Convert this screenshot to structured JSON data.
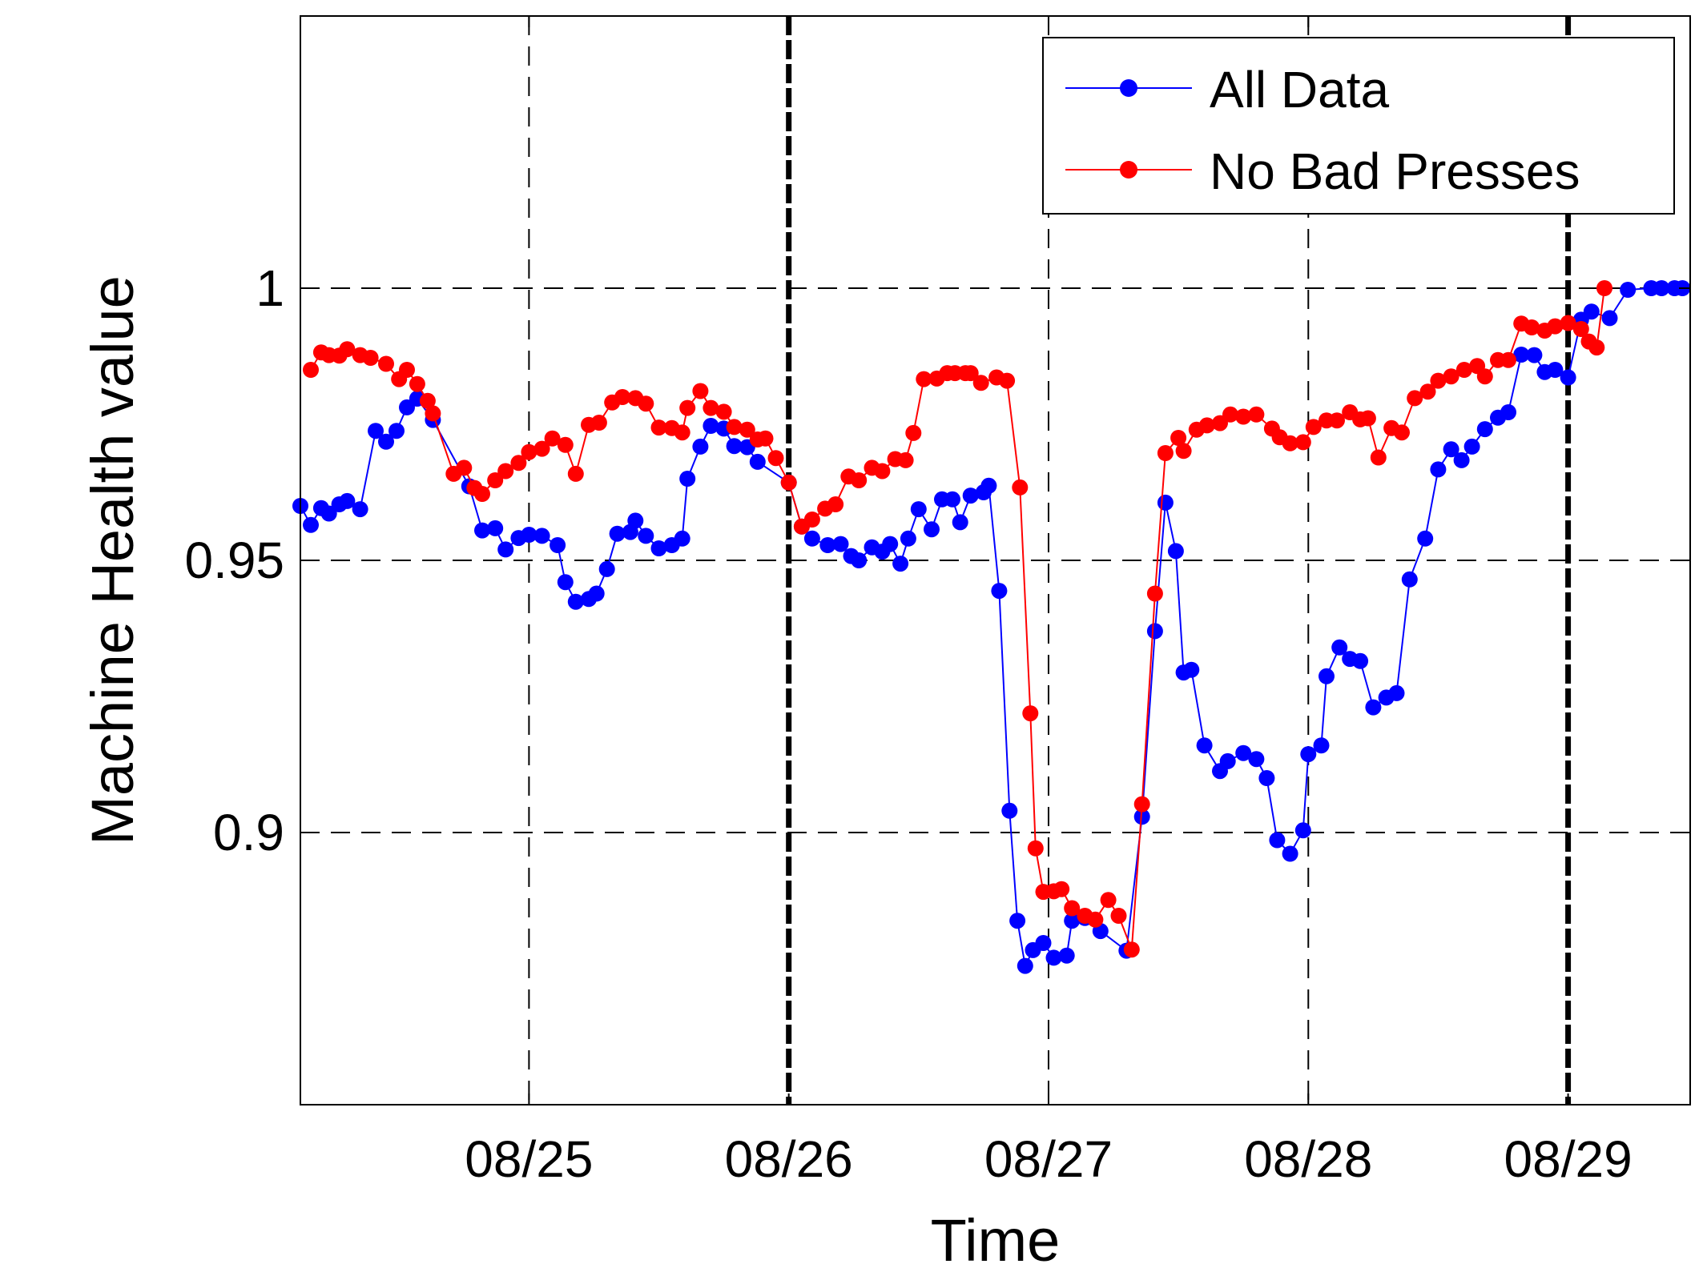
{
  "chart_data": {
    "type": "line",
    "title": "",
    "xlabel": "Time",
    "ylabel": "Machine Health value",
    "x_unit": "days (0 = 08/25)",
    "xlim": [
      -0.88,
      4.47
    ],
    "ylim": [
      0.85,
      1.05
    ],
    "x_ticks": [
      {
        "x": 0,
        "label": "08/25"
      },
      {
        "x": 1,
        "label": "08/26"
      },
      {
        "x": 2,
        "label": "08/27"
      },
      {
        "x": 3,
        "label": "08/28"
      },
      {
        "x": 4,
        "label": "08/29"
      }
    ],
    "y_ticks": [
      {
        "y": 0.9,
        "label": "0.9"
      },
      {
        "y": 0.95,
        "label": "0.95"
      },
      {
        "y": 1.0,
        "label": "1"
      }
    ],
    "grid": true,
    "vertical_markers": [
      1,
      4
    ],
    "legend": {
      "position": "top-right"
    },
    "series": [
      {
        "name": "All Data",
        "color": "#0000ff",
        "points": [
          [
            -0.88,
            0.96
          ],
          [
            -0.84,
            0.9565
          ],
          [
            -0.8,
            0.9596
          ],
          [
            -0.77,
            0.9586
          ],
          [
            -0.73,
            0.9603
          ],
          [
            -0.7,
            0.9609
          ],
          [
            -0.65,
            0.9594
          ],
          [
            -0.59,
            0.9738
          ],
          [
            -0.55,
            0.9718
          ],
          [
            -0.51,
            0.9738
          ],
          [
            -0.47,
            0.9781
          ],
          [
            -0.43,
            0.9797
          ],
          [
            -0.37,
            0.9758
          ],
          [
            -0.23,
            0.9636
          ],
          [
            -0.18,
            0.9555
          ],
          [
            -0.13,
            0.9559
          ],
          [
            -0.09,
            0.952
          ],
          [
            -0.04,
            0.9541
          ],
          [
            0.0,
            0.9547
          ],
          [
            0.05,
            0.9545
          ],
          [
            0.11,
            0.9528
          ],
          [
            0.14,
            0.946
          ],
          [
            0.18,
            0.9424
          ],
          [
            0.23,
            0.9429
          ],
          [
            0.26,
            0.9439
          ],
          [
            0.3,
            0.9484
          ],
          [
            0.34,
            0.9549
          ],
          [
            0.39,
            0.9552
          ],
          [
            0.41,
            0.9573
          ],
          [
            0.45,
            0.9545
          ],
          [
            0.5,
            0.9522
          ],
          [
            0.55,
            0.9528
          ],
          [
            0.59,
            0.954
          ],
          [
            0.61,
            0.965
          ],
          [
            0.66,
            0.9709
          ],
          [
            0.7,
            0.9747
          ],
          [
            0.75,
            0.9742
          ],
          [
            0.79,
            0.971
          ],
          [
            0.84,
            0.9708
          ],
          [
            0.88,
            0.9681
          ],
          [
            1.0,
            0.9643
          ],
          [
            1.05,
            0.9562
          ],
          [
            1.09,
            0.954
          ],
          [
            1.15,
            0.9528
          ],
          [
            1.2,
            0.953
          ],
          [
            1.24,
            0.9508
          ],
          [
            1.27,
            0.95
          ],
          [
            1.32,
            0.9524
          ],
          [
            1.36,
            0.9516
          ],
          [
            1.39,
            0.953
          ],
          [
            1.43,
            0.9494
          ],
          [
            1.46,
            0.954
          ],
          [
            1.5,
            0.9594
          ],
          [
            1.55,
            0.9557
          ],
          [
            1.59,
            0.9612
          ],
          [
            1.63,
            0.9612
          ],
          [
            1.66,
            0.957
          ],
          [
            1.7,
            0.9619
          ],
          [
            1.75,
            0.9625
          ],
          [
            1.77,
            0.9637
          ],
          [
            1.81,
            0.9444
          ],
          [
            1.85,
            0.904
          ],
          [
            1.88,
            0.8838
          ],
          [
            1.91,
            0.8755
          ],
          [
            1.94,
            0.8784
          ],
          [
            1.98,
            0.8797
          ],
          [
            2.02,
            0.877
          ],
          [
            2.07,
            0.8774
          ],
          [
            2.09,
            0.8838
          ],
          [
            2.14,
            0.8843
          ],
          [
            2.2,
            0.8819
          ],
          [
            2.3,
            0.8783
          ],
          [
            2.36,
            0.9029
          ],
          [
            2.41,
            0.937
          ],
          [
            2.45,
            0.9606
          ],
          [
            2.49,
            0.9517
          ],
          [
            2.52,
            0.9294
          ],
          [
            2.55,
            0.9299
          ],
          [
            2.6,
            0.916
          ],
          [
            2.66,
            0.9113
          ],
          [
            2.69,
            0.9131
          ],
          [
            2.75,
            0.9146
          ],
          [
            2.8,
            0.9135
          ],
          [
            2.84,
            0.91
          ],
          [
            2.88,
            0.8986
          ],
          [
            2.93,
            0.8961
          ],
          [
            2.98,
            0.9004
          ],
          [
            3.0,
            0.9144
          ],
          [
            3.05,
            0.916
          ],
          [
            3.07,
            0.9287
          ],
          [
            3.12,
            0.934
          ],
          [
            3.16,
            0.9319
          ],
          [
            3.2,
            0.9315
          ],
          [
            3.25,
            0.923
          ],
          [
            3.3,
            0.9248
          ],
          [
            3.34,
            0.9256
          ],
          [
            3.39,
            0.9465
          ],
          [
            3.45,
            0.954
          ],
          [
            3.5,
            0.9667
          ],
          [
            3.55,
            0.9704
          ],
          [
            3.59,
            0.9684
          ],
          [
            3.63,
            0.9709
          ],
          [
            3.68,
            0.9741
          ],
          [
            3.73,
            0.9762
          ],
          [
            3.77,
            0.9772
          ],
          [
            3.82,
            0.9878
          ],
          [
            3.87,
            0.9877
          ],
          [
            3.91,
            0.9846
          ],
          [
            3.95,
            0.985
          ],
          [
            4.0,
            0.9836
          ],
          [
            4.05,
            0.9942
          ],
          [
            4.09,
            0.9957
          ],
          [
            4.16,
            0.9945
          ],
          [
            4.23,
            0.9997
          ],
          [
            4.32,
            1.0
          ],
          [
            4.36,
            1.0
          ],
          [
            4.41,
            1.0
          ],
          [
            4.44,
            1.0
          ]
        ]
      },
      {
        "name": "No Bad Presses",
        "color": "#ff0000",
        "points": [
          [
            -0.84,
            0.985
          ],
          [
            -0.8,
            0.9882
          ],
          [
            -0.77,
            0.9877
          ],
          [
            -0.73,
            0.9876
          ],
          [
            -0.7,
            0.9888
          ],
          [
            -0.65,
            0.9877
          ],
          [
            -0.61,
            0.9872
          ],
          [
            -0.55,
            0.9861
          ],
          [
            -0.5,
            0.9833
          ],
          [
            -0.47,
            0.985
          ],
          [
            -0.43,
            0.9824
          ],
          [
            -0.39,
            0.9793
          ],
          [
            -0.37,
            0.977
          ],
          [
            -0.29,
            0.9659
          ],
          [
            -0.25,
            0.967
          ],
          [
            -0.21,
            0.9633
          ],
          [
            -0.18,
            0.9622
          ],
          [
            -0.13,
            0.9647
          ],
          [
            -0.09,
            0.9664
          ],
          [
            -0.04,
            0.9679
          ],
          [
            0.0,
            0.9699
          ],
          [
            0.05,
            0.9705
          ],
          [
            0.09,
            0.9724
          ],
          [
            0.14,
            0.9712
          ],
          [
            0.18,
            0.9659
          ],
          [
            0.23,
            0.9749
          ],
          [
            0.27,
            0.9753
          ],
          [
            0.32,
            0.979
          ],
          [
            0.36,
            0.98
          ],
          [
            0.41,
            0.9798
          ],
          [
            0.45,
            0.9788
          ],
          [
            0.5,
            0.9744
          ],
          [
            0.55,
            0.9743
          ],
          [
            0.59,
            0.9735
          ],
          [
            0.61,
            0.978
          ],
          [
            0.66,
            0.9811
          ],
          [
            0.7,
            0.978
          ],
          [
            0.75,
            0.9773
          ],
          [
            0.79,
            0.9745
          ],
          [
            0.84,
            0.974
          ],
          [
            0.88,
            0.9722
          ],
          [
            0.91,
            0.9724
          ],
          [
            0.95,
            0.9688
          ],
          [
            1.0,
            0.9643
          ],
          [
            1.05,
            0.9562
          ],
          [
            1.09,
            0.9575
          ],
          [
            1.14,
            0.9595
          ],
          [
            1.18,
            0.9603
          ],
          [
            1.23,
            0.9654
          ],
          [
            1.27,
            0.9647
          ],
          [
            1.32,
            0.967
          ],
          [
            1.36,
            0.9664
          ],
          [
            1.41,
            0.9686
          ],
          [
            1.45,
            0.9684
          ],
          [
            1.48,
            0.9734
          ],
          [
            1.52,
            0.9833
          ],
          [
            1.57,
            0.9834
          ],
          [
            1.61,
            0.9844
          ],
          [
            1.64,
            0.9844
          ],
          [
            1.68,
            0.9844
          ],
          [
            1.7,
            0.9844
          ],
          [
            1.74,
            0.9826
          ],
          [
            1.8,
            0.9836
          ],
          [
            1.84,
            0.983
          ],
          [
            1.89,
            0.9634
          ],
          [
            1.93,
            0.9219
          ],
          [
            1.95,
            0.8971
          ],
          [
            1.98,
            0.8891
          ],
          [
            2.02,
            0.8892
          ],
          [
            2.05,
            0.8896
          ],
          [
            2.09,
            0.8861
          ],
          [
            2.14,
            0.8847
          ],
          [
            2.18,
            0.884
          ],
          [
            2.23,
            0.8876
          ],
          [
            2.27,
            0.8847
          ],
          [
            2.32,
            0.8785
          ],
          [
            2.36,
            0.9052
          ],
          [
            2.41,
            0.9439
          ],
          [
            2.45,
            0.9697
          ],
          [
            2.5,
            0.9725
          ],
          [
            2.52,
            0.9701
          ],
          [
            2.57,
            0.974
          ],
          [
            2.61,
            0.9748
          ],
          [
            2.66,
            0.9752
          ],
          [
            2.7,
            0.9768
          ],
          [
            2.75,
            0.9764
          ],
          [
            2.8,
            0.9768
          ],
          [
            2.86,
            0.9742
          ],
          [
            2.89,
            0.9726
          ],
          [
            2.93,
            0.9715
          ],
          [
            2.98,
            0.9717
          ],
          [
            3.02,
            0.9745
          ],
          [
            3.07,
            0.9757
          ],
          [
            3.11,
            0.9757
          ],
          [
            3.16,
            0.9772
          ],
          [
            3.2,
            0.9759
          ],
          [
            3.23,
            0.9761
          ],
          [
            3.27,
            0.9689
          ],
          [
            3.32,
            0.9743
          ],
          [
            3.36,
            0.9735
          ],
          [
            3.41,
            0.9798
          ],
          [
            3.46,
            0.981
          ],
          [
            3.5,
            0.983
          ],
          [
            3.55,
            0.9838
          ],
          [
            3.6,
            0.985
          ],
          [
            3.65,
            0.9857
          ],
          [
            3.68,
            0.9838
          ],
          [
            3.73,
            0.9868
          ],
          [
            3.77,
            0.9868
          ],
          [
            3.82,
            0.9935
          ],
          [
            3.86,
            0.9928
          ],
          [
            3.91,
            0.9922
          ],
          [
            3.95,
            0.993
          ],
          [
            4.0,
            0.9936
          ],
          [
            4.05,
            0.9925
          ],
          [
            4.08,
            0.9902
          ],
          [
            4.11,
            0.9891
          ],
          [
            4.14,
            1.0
          ]
        ]
      }
    ]
  }
}
